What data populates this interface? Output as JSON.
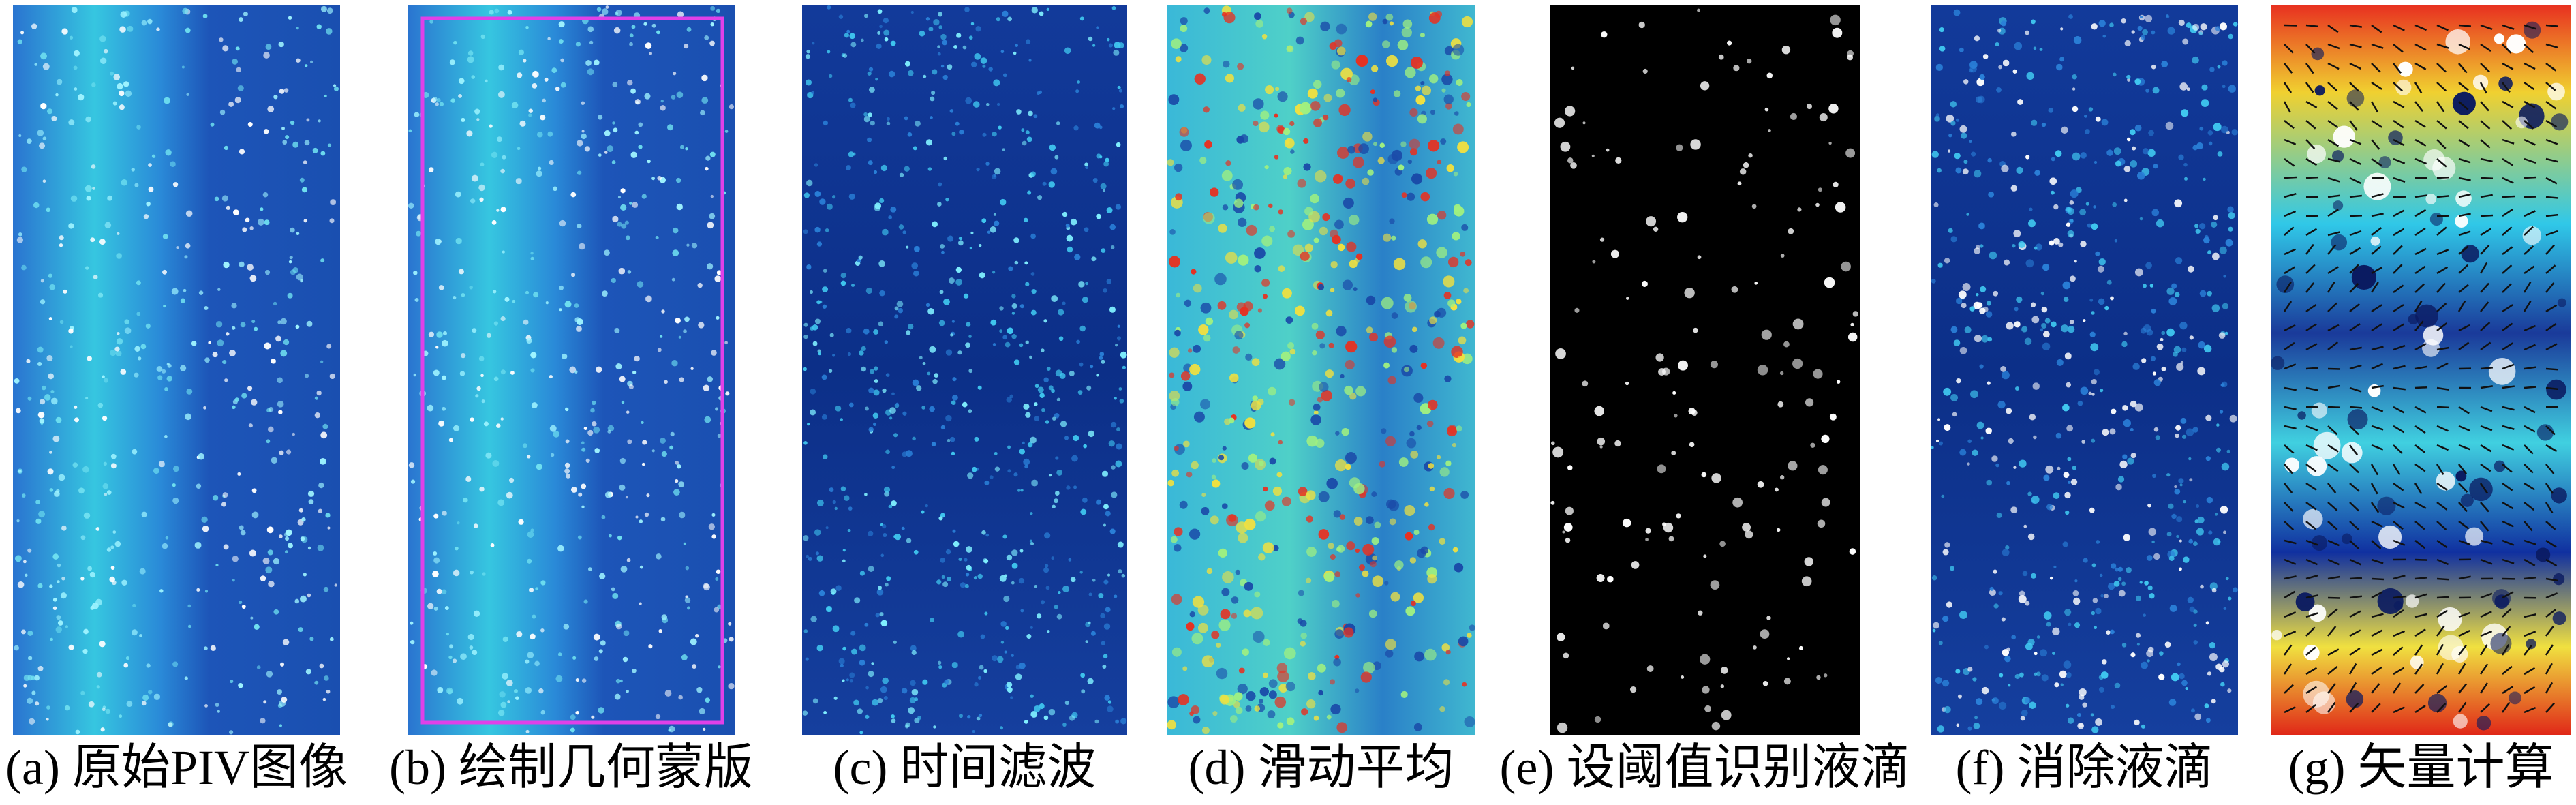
{
  "panels": [
    {
      "caption": "(a) 原始PIV图像"
    },
    {
      "caption": "(b) 绘制几何蒙版"
    },
    {
      "caption": "(c) 时间滤波"
    },
    {
      "caption": "(d) 滑动平均"
    },
    {
      "caption": "(e) 设阈值识别液滴"
    },
    {
      "caption": "(f) 消除液滴"
    },
    {
      "caption": "(g) 矢量计算"
    }
  ]
}
